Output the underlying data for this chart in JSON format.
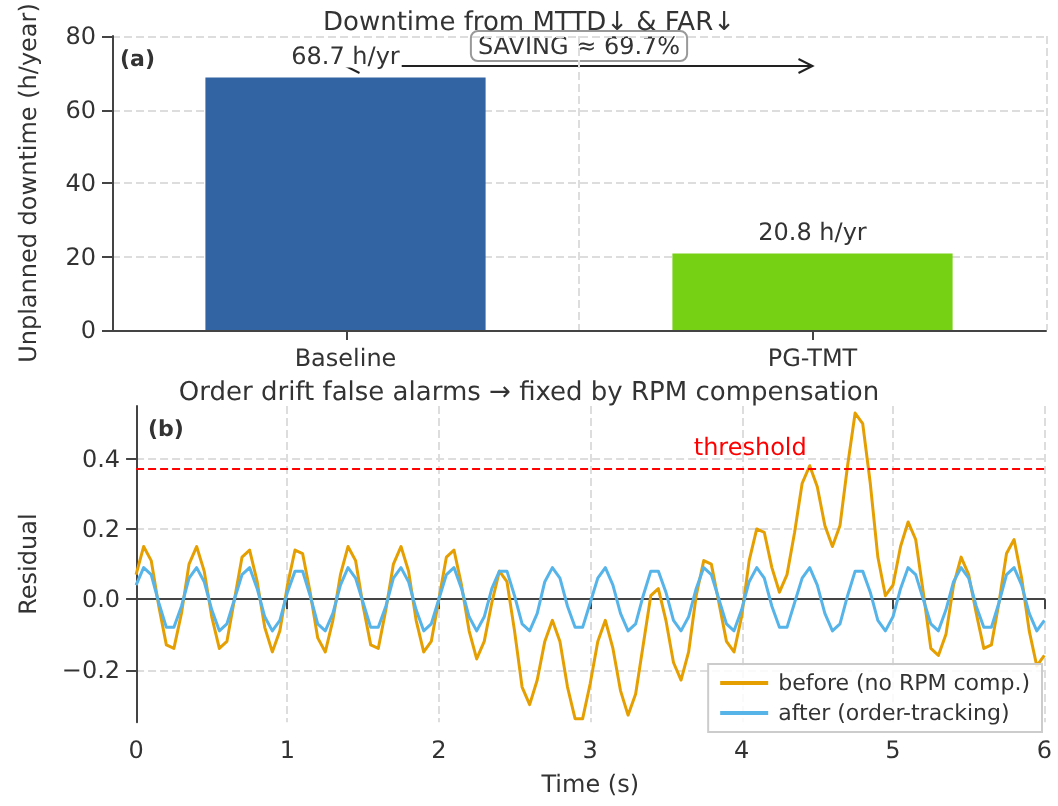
{
  "chart_data": [
    {
      "type": "bar",
      "title": "Downtime from MTTD↓ & FAR↓",
      "ylabel": "Unplanned downtime (h/year)",
      "categories": [
        "Baseline",
        "PG-TMT"
      ],
      "values": [
        68.7,
        20.8
      ],
      "colors": [
        "#3264a4",
        "#76d014"
      ],
      "value_labels": [
        "68.7 h/yr",
        "20.8 h/yr"
      ],
      "ylim": [
        0,
        80
      ],
      "yticks": [
        0,
        20,
        40,
        60,
        80
      ],
      "grid": true,
      "annotations": [
        "(a)",
        "SAVING ≈ 69.7%"
      ]
    },
    {
      "type": "line",
      "title": "Order drift false alarms → fixed by RPM compensation",
      "xlabel": "Time (s)",
      "ylabel": "Residual",
      "marker": "none",
      "line_style": "solid",
      "grid": true,
      "legend": "bottom right",
      "annotations": [
        "(b)"
      ],
      "x": [
        0,
        0.05,
        0.1,
        0.15,
        0.2,
        0.25,
        0.3,
        0.35,
        0.4,
        0.45,
        0.5,
        0.55,
        0.6,
        0.65,
        0.7,
        0.75,
        0.8,
        0.85,
        0.9,
        0.95,
        1,
        1.05,
        1.1,
        1.15,
        1.2,
        1.25,
        1.3,
        1.35,
        1.4,
        1.45,
        1.5,
        1.55,
        1.6,
        1.65,
        1.7,
        1.75,
        1.8,
        1.85,
        1.9,
        1.95,
        2,
        2.05,
        2.1,
        2.15,
        2.2,
        2.25,
        2.3,
        2.35,
        2.4,
        2.45,
        2.5,
        2.55,
        2.6,
        2.65,
        2.7,
        2.75,
        2.8,
        2.85,
        2.9,
        2.95,
        3,
        3.05,
        3.1,
        3.15,
        3.2,
        3.25,
        3.3,
        3.35,
        3.4,
        3.45,
        3.5,
        3.55,
        3.6,
        3.65,
        3.7,
        3.75,
        3.8,
        3.85,
        3.9,
        3.95,
        4,
        4.05,
        4.1,
        4.15,
        4.2,
        4.25,
        4.3,
        4.35,
        4.4,
        4.45,
        4.5,
        4.55,
        4.6,
        4.65,
        4.7,
        4.75,
        4.8,
        4.85,
        4.9,
        4.95,
        5,
        5.05,
        5.1,
        5.15,
        5.2,
        5.25,
        5.3,
        5.35,
        5.4,
        5.45,
        5.5,
        5.55,
        5.6,
        5.65,
        5.7,
        5.75,
        5.8,
        5.85,
        5.9,
        5.95,
        6
      ],
      "series": [
        {
          "name": "before (no RPM comp.)",
          "color": "#e69f00",
          "values": [
            0.07,
            0.15,
            0.11,
            -0.02,
            -0.13,
            -0.14,
            -0.04,
            0.1,
            0.15,
            0.08,
            -0.05,
            -0.14,
            -0.12,
            0,
            0.12,
            0.14,
            0.05,
            -0.08,
            -0.15,
            -0.09,
            0.04,
            0.14,
            0.13,
            0.02,
            -0.11,
            -0.15,
            -0.06,
            0.07,
            0.15,
            0.11,
            -0.02,
            -0.13,
            -0.14,
            -0.03,
            0.1,
            0.15,
            0.08,
            -0.06,
            -0.15,
            -0.12,
            0,
            0.12,
            0.14,
            0.04,
            -0.09,
            -0.17,
            -0.12,
            -0.01,
            0.08,
            0.05,
            -0.09,
            -0.25,
            -0.3,
            -0.23,
            -0.12,
            -0.06,
            -0.12,
            -0.25,
            -0.34,
            -0.34,
            -0.24,
            -0.12,
            -0.06,
            -0.14,
            -0.26,
            -0.33,
            -0.27,
            -0.13,
            0.01,
            0.03,
            -0.06,
            -0.18,
            -0.23,
            -0.15,
            0.01,
            0.11,
            0.1,
            -0.01,
            -0.12,
            -0.15,
            -0.05,
            0.11,
            0.2,
            0.19,
            0.09,
            0.02,
            0.07,
            0.19,
            0.33,
            0.38,
            0.32,
            0.21,
            0.15,
            0.21,
            0.38,
            0.53,
            0.5,
            0.33,
            0.12,
            0.01,
            0.04,
            0.15,
            0.22,
            0.17,
            0.02,
            -0.14,
            -0.16,
            -0.1,
            0.04,
            0.12,
            0.07,
            -0.04,
            -0.14,
            -0.13,
            -0.01,
            0.13,
            0.17,
            0.06,
            -0.09,
            -0.19,
            -0.16
          ]
        },
        {
          "name": "after (order-tracking)",
          "color": "#56b4e9",
          "values": [
            0.04,
            0.09,
            0.07,
            -0.01,
            -0.08,
            -0.08,
            -0.02,
            0.06,
            0.09,
            0.05,
            -0.03,
            -0.09,
            -0.07,
            0,
            0.07,
            0.09,
            0.03,
            -0.05,
            -0.09,
            -0.06,
            0.02,
            0.08,
            0.08,
            0.01,
            -0.07,
            -0.09,
            -0.04,
            0.04,
            0.09,
            0.06,
            -0.01,
            -0.08,
            -0.08,
            -0.02,
            0.06,
            0.09,
            0.05,
            -0.03,
            -0.09,
            -0.07,
            0,
            0.07,
            0.09,
            0.03,
            -0.05,
            -0.09,
            -0.05,
            0.03,
            0.08,
            0.08,
            0.01,
            -0.07,
            -0.09,
            -0.04,
            0.05,
            0.09,
            0.06,
            -0.02,
            -0.08,
            -0.08,
            -0.01,
            0.06,
            0.09,
            0.04,
            -0.04,
            -0.09,
            -0.07,
            0.01,
            0.08,
            0.08,
            0.02,
            -0.06,
            -0.09,
            -0.05,
            0.03,
            0.09,
            0.07,
            0,
            -0.07,
            -0.09,
            -0.03,
            0.05,
            0.09,
            0.06,
            -0.02,
            -0.08,
            -0.08,
            -0.01,
            0.06,
            0.09,
            0.04,
            -0.04,
            -0.09,
            -0.07,
            0.01,
            0.08,
            0.08,
            0.02,
            -0.06,
            -0.09,
            -0.05,
            0.03,
            0.09,
            0.07,
            0,
            -0.07,
            -0.09,
            -0.03,
            0.05,
            0.09,
            0.06,
            -0.02,
            -0.08,
            -0.08,
            -0.01,
            0.07,
            0.09,
            0.04,
            -0.04,
            -0.09,
            -0.06
          ]
        }
      ],
      "xlim": [
        0,
        6
      ],
      "xticks": [
        0,
        1,
        2,
        3,
        4,
        5,
        6
      ],
      "ylim": [
        -0.35,
        0.55
      ],
      "yticks": [
        {
          "value": -0.2,
          "label": "−0.2"
        },
        {
          "value": 0,
          "label": "0.0"
        },
        {
          "value": 0.2,
          "label": "0.2"
        },
        {
          "value": 0.4,
          "label": "0.4"
        }
      ],
      "ref_lines": [
        {
          "axis": "y",
          "value": 0.37,
          "label": "threshold",
          "color": "#ff0000",
          "line_style": "dashed"
        }
      ]
    }
  ]
}
